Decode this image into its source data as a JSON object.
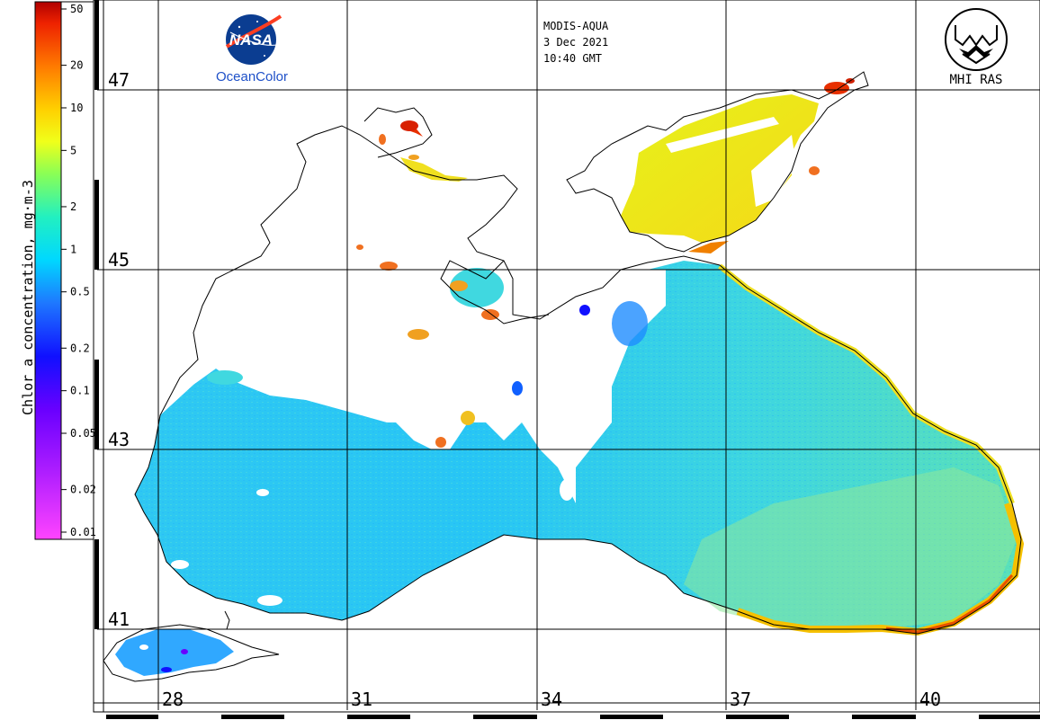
{
  "header": {
    "sensor": "MODIS-AQUA",
    "date": "3 Dec 2021",
    "time": "10:40 GMT"
  },
  "logos": {
    "nasa_text": "NASA",
    "oceancolor_text": "OceanColor",
    "mhi_text": "MHI RAS"
  },
  "colorbar": {
    "label": "Chlor_a concentration, mg·m-3",
    "ticks": [
      "50",
      "20",
      "10",
      "5",
      "2",
      "1",
      "0.5",
      "0.2",
      "0.1",
      "0.05",
      "0.02",
      "0.01"
    ],
    "tick_values": [
      50,
      20,
      10,
      5,
      2,
      1,
      0.5,
      0.2,
      0.1,
      0.05,
      0.02,
      0.01
    ],
    "scale": "log",
    "range": [
      0.01,
      50
    ]
  },
  "map": {
    "lat_labels": [
      "47",
      "45",
      "43",
      "41"
    ],
    "lon_labels": [
      "28",
      "31",
      "34",
      "37",
      "40"
    ],
    "land_color": "#ffffff",
    "coast_color": "#000000",
    "grid_color": "#000000"
  }
}
